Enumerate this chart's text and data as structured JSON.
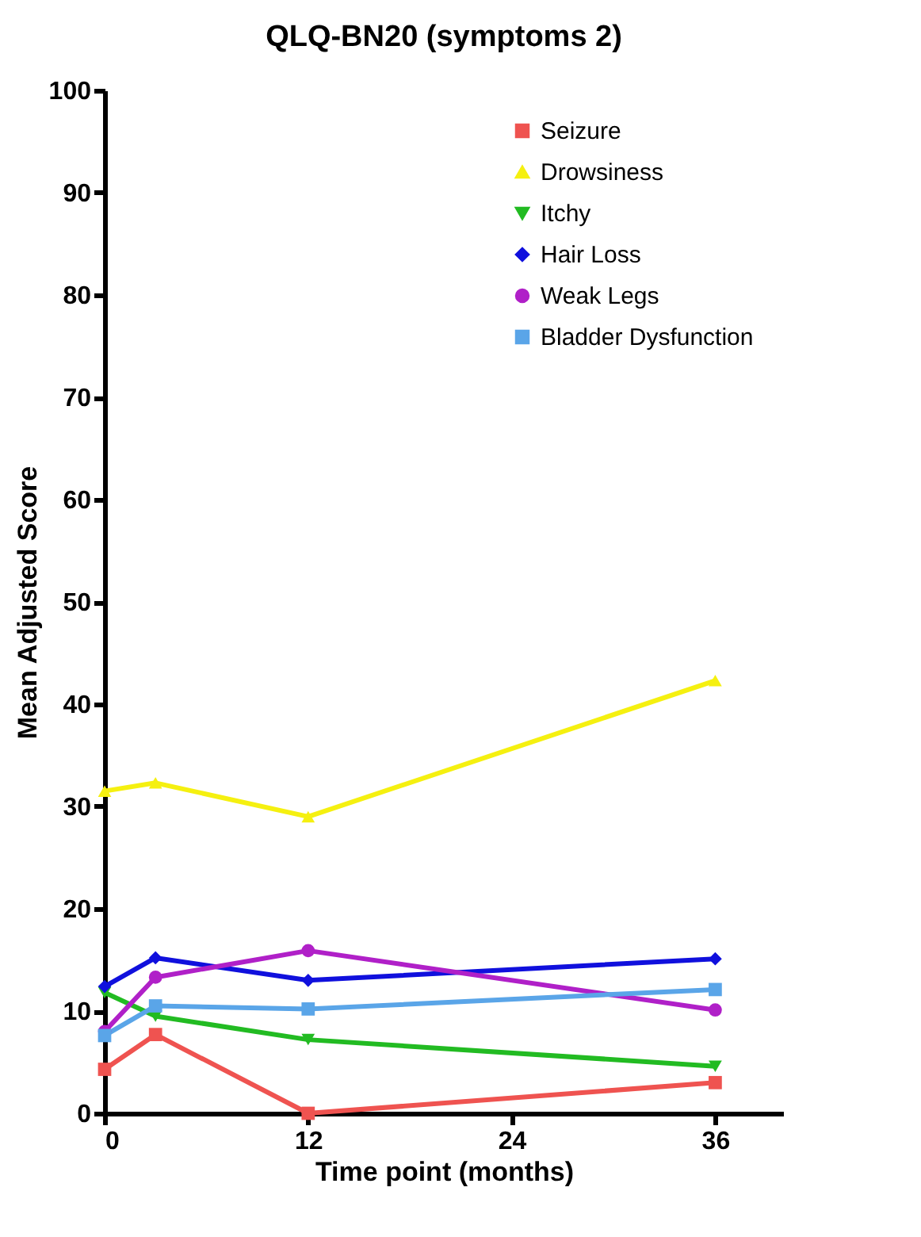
{
  "chart_data": {
    "type": "line",
    "title": "QLQ-BN20 (symptoms 2)",
    "xlabel": "Time point (months)",
    "ylabel": "Mean Adjusted Score",
    "x": [
      0,
      3,
      12,
      36
    ],
    "xlim": [
      0,
      40
    ],
    "xticks": [
      0,
      12,
      24,
      36
    ],
    "ylim": [
      0,
      100
    ],
    "yticks": [
      0,
      10,
      20,
      30,
      40,
      50,
      60,
      70,
      80,
      90,
      100
    ],
    "grid": false,
    "legend": "top right",
    "series": [
      {
        "name": "Seizure",
        "color": "#ef5350",
        "marker": "square",
        "values": [
          4.3,
          7.7,
          0,
          3.0
        ]
      },
      {
        "name": "Drowsiness",
        "color": "#f5f010",
        "marker": "triangle",
        "values": [
          31.5,
          32.3,
          29,
          42.3
        ]
      },
      {
        "name": "Itchy",
        "color": "#22bb22",
        "marker": "triangle-down",
        "values": [
          11.8,
          9.5,
          7.2,
          4.6
        ]
      },
      {
        "name": "Hair Loss",
        "color": "#1010dd",
        "marker": "diamond",
        "values": [
          12.4,
          15.2,
          13,
          15.1
        ]
      },
      {
        "name": "Weak Legs",
        "color": "#b020c8",
        "marker": "circle",
        "values": [
          8,
          13.3,
          15.9,
          10.1
        ]
      },
      {
        "name": "Bladder Dysfunction",
        "color": "#5aa5e8",
        "marker": "square",
        "values": [
          7.6,
          10.5,
          10.2,
          12.1
        ]
      }
    ]
  }
}
